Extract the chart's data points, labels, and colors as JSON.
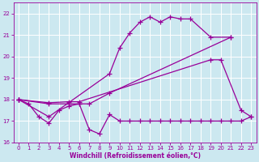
{
  "xlabel": "Windchill (Refroidissement éolien,°C)",
  "ylim": [
    16,
    22.5
  ],
  "yticks": [
    16,
    17,
    18,
    19,
    20,
    21,
    22
  ],
  "xticks": [
    0,
    1,
    2,
    3,
    4,
    5,
    6,
    7,
    8,
    9,
    10,
    11,
    12,
    13,
    14,
    15,
    16,
    17,
    18,
    19,
    20,
    21,
    22,
    23
  ],
  "line_color": "#990099",
  "bg_color": "#cce8f0",
  "grid_color": "#ffffff",
  "marker": "+",
  "marker_size": 4,
  "line_width": 0.9,
  "line1_x": [
    0,
    1,
    2,
    3,
    4,
    5,
    6,
    7,
    8,
    9,
    10,
    11,
    12,
    13,
    14,
    15,
    16,
    17,
    18,
    19,
    20,
    21,
    22,
    23
  ],
  "line1_y": [
    18.0,
    17.8,
    17.2,
    16.9,
    17.5,
    17.7,
    17.8,
    16.6,
    16.4,
    17.3,
    17.0,
    17.0,
    17.0,
    17.0,
    17.0,
    17.0,
    17.0,
    17.0,
    17.0,
    17.0,
    17.0,
    17.0,
    17.0,
    17.2
  ],
  "line2_x": [
    0,
    3,
    5,
    6,
    19,
    20,
    22,
    23
  ],
  "line2_y": [
    18.0,
    17.85,
    17.9,
    17.9,
    19.85,
    19.85,
    17.5,
    17.2
  ],
  "line3_x": [
    0,
    3,
    5,
    6,
    7,
    9,
    21
  ],
  "line3_y": [
    18.0,
    17.8,
    17.8,
    17.8,
    17.8,
    18.3,
    20.9
  ],
  "line4_x": [
    0,
    3,
    9,
    10,
    11,
    12,
    13,
    14,
    15,
    16,
    17,
    19,
    21
  ],
  "line4_y": [
    18.0,
    17.2,
    19.2,
    20.4,
    21.1,
    21.6,
    21.85,
    21.6,
    21.85,
    21.75,
    21.75,
    20.9,
    20.9
  ]
}
